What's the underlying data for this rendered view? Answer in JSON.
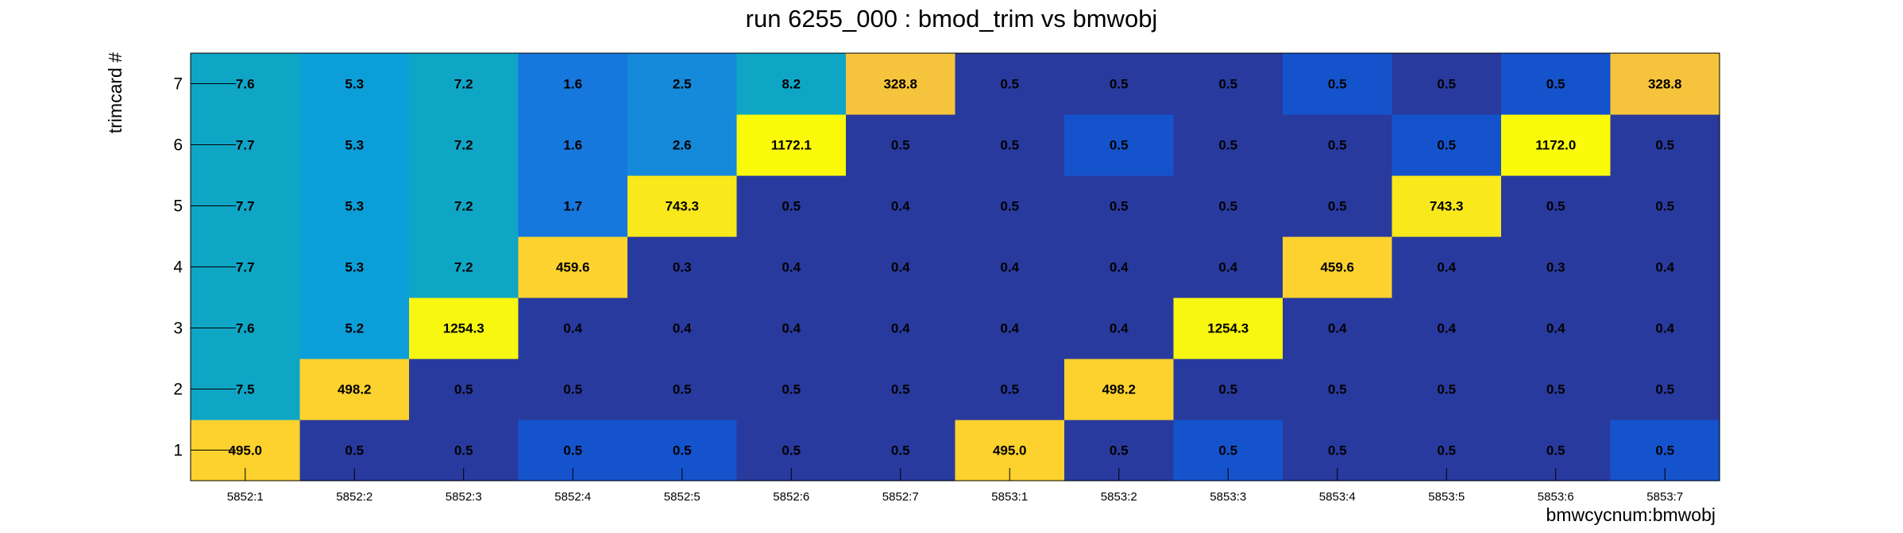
{
  "chart_data": {
    "type": "heatmap",
    "title": "run 6255_000 : bmod_trim vs bmwobj",
    "xlabel": "bmwcycnum:bmwobj",
    "ylabel": "trimcard #",
    "x_categories": [
      "5852:1",
      "5852:2",
      "5852:3",
      "5852:4",
      "5852:5",
      "5852:6",
      "5852:7",
      "5853:1",
      "5853:2",
      "5853:3",
      "5853:4",
      "5853:5",
      "5853:6",
      "5853:7"
    ],
    "y_categories": [
      "1",
      "2",
      "3",
      "4",
      "5",
      "6",
      "7"
    ],
    "cells": [
      [
        "495.0",
        "0.5",
        "0.5",
        "0.5",
        "0.5",
        "0.5",
        "0.5",
        "495.0",
        "0.5",
        "0.5",
        "0.5",
        "0.5",
        "0.5",
        "0.5"
      ],
      [
        "7.5",
        "498.2",
        "0.5",
        "0.5",
        "0.5",
        "0.5",
        "0.5",
        "0.5",
        "498.2",
        "0.5",
        "0.5",
        "0.5",
        "0.5",
        "0.5"
      ],
      [
        "7.6",
        "5.2",
        "1254.3",
        "0.4",
        "0.4",
        "0.4",
        "0.4",
        "0.4",
        "0.4",
        "1254.3",
        "0.4",
        "0.4",
        "0.4",
        "0.4"
      ],
      [
        "7.7",
        "5.3",
        "7.2",
        "459.6",
        "0.3",
        "0.4",
        "0.4",
        "0.4",
        "0.4",
        "0.4",
        "459.6",
        "0.4",
        "0.3",
        "0.4"
      ],
      [
        "7.7",
        "5.3",
        "7.2",
        "1.7",
        "743.3",
        "0.5",
        "0.4",
        "0.5",
        "0.5",
        "0.5",
        "0.5",
        "743.3",
        "0.5",
        "0.5"
      ],
      [
        "7.7",
        "5.3",
        "7.2",
        "1.6",
        "2.6",
        "1172.1",
        "0.5",
        "0.5",
        "0.5",
        "0.5",
        "0.5",
        "0.5",
        "1172.0",
        "0.5"
      ],
      [
        "7.6",
        "5.3",
        "7.2",
        "1.6",
        "2.5",
        "8.2",
        "328.8",
        "0.5",
        "0.5",
        "0.5",
        "0.5",
        "0.5",
        "0.5",
        "328.8"
      ]
    ],
    "cell_colors": [
      [
        "#fdd22e",
        "#293a9e",
        "#293a9e",
        "#1553cc",
        "#1553cc",
        "#293a9e",
        "#293a9e",
        "#fdd22e",
        "#293a9e",
        "#1553cc",
        "#293a9e",
        "#293a9e",
        "#293a9e",
        "#1553cc"
      ],
      [
        "#0fa6c6",
        "#fdd22e",
        "#293a9e",
        "#293a9e",
        "#293a9e",
        "#293a9e",
        "#293a9e",
        "#293a9e",
        "#fdd22e",
        "#293a9e",
        "#293a9e",
        "#293a9e",
        "#293a9e",
        "#293a9e"
      ],
      [
        "#0fa6c6",
        "#0b9ed8",
        "#f8f70f",
        "#293a9e",
        "#293a9e",
        "#293a9e",
        "#293a9e",
        "#293a9e",
        "#293a9e",
        "#f8f70f",
        "#293a9e",
        "#293a9e",
        "#293a9e",
        "#293a9e"
      ],
      [
        "#0fa6c6",
        "#0b9ed8",
        "#0fa6c6",
        "#fdd22e",
        "#293a9e",
        "#293a9e",
        "#293a9e",
        "#293a9e",
        "#293a9e",
        "#293a9e",
        "#fdd22e",
        "#293a9e",
        "#293a9e",
        "#293a9e"
      ],
      [
        "#0fa6c6",
        "#0b9ed8",
        "#0fa6c6",
        "#1677dc",
        "#f8e81c",
        "#293a9e",
        "#293a9e",
        "#293a9e",
        "#293a9e",
        "#293a9e",
        "#293a9e",
        "#f8e81c",
        "#293a9e",
        "#293a9e"
      ],
      [
        "#0fa6c6",
        "#0b9ed8",
        "#0fa6c6",
        "#1677dc",
        "#1589da",
        "#fafa0a",
        "#293a9e",
        "#293a9e",
        "#1553cc",
        "#293a9e",
        "#293a9e",
        "#1553cc",
        "#fafa0a",
        "#293a9e"
      ],
      [
        "#0fa6c6",
        "#0b9ed8",
        "#0fa6c6",
        "#1677dc",
        "#1589da",
        "#0fa6c6",
        "#f6c43c",
        "#293a9e",
        "#293a9e",
        "#293a9e",
        "#1553cc",
        "#293a9e",
        "#1553cc",
        "#f6c43c"
      ]
    ],
    "grid": false,
    "legend": "none"
  }
}
